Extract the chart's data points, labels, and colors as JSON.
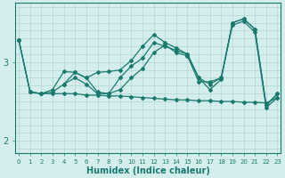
{
  "xlabel": "Humidex (Indice chaleur)",
  "bg_color": "#d4eeee",
  "grid_color": "#b8d8d8",
  "line_color": "#1a7a6e",
  "x_ticks": [
    0,
    1,
    2,
    3,
    4,
    5,
    6,
    7,
    8,
    9,
    10,
    11,
    12,
    13,
    14,
    15,
    16,
    17,
    18,
    19,
    20,
    21,
    22,
    23
  ],
  "y_ticks": [
    2,
    3
  ],
  "ylim": [
    1.85,
    3.75
  ],
  "xlim": [
    -0.3,
    23.3
  ],
  "series": [
    {
      "x": [
        0,
        1,
        2,
        3,
        4,
        5,
        6,
        7,
        8,
        9,
        10,
        11,
        12,
        13,
        14,
        15,
        16,
        17,
        18,
        19,
        20,
        21,
        22,
        23
      ],
      "y": [
        3.28,
        2.62,
        2.6,
        2.62,
        2.72,
        2.8,
        2.72,
        2.6,
        2.6,
        2.8,
        2.95,
        3.05,
        3.25,
        3.2,
        3.15,
        3.1,
        2.8,
        2.72,
        2.8,
        3.5,
        3.55,
        3.42,
        2.45,
        2.6
      ]
    },
    {
      "x": [
        0,
        1,
        2,
        3,
        4,
        5,
        6,
        7,
        8,
        9,
        10,
        11,
        12,
        13,
        14,
        15,
        16,
        17,
        18,
        19,
        20,
        21,
        22,
        23
      ],
      "y": [
        3.28,
        2.62,
        2.6,
        2.65,
        2.88,
        2.87,
        2.8,
        2.87,
        2.88,
        2.9,
        3.02,
        3.2,
        3.35,
        3.25,
        3.18,
        3.1,
        2.8,
        2.65,
        2.78,
        3.5,
        3.55,
        3.42,
        2.45,
        2.6
      ]
    },
    {
      "x": [
        4,
        5,
        6,
        7,
        8,
        9,
        10,
        11,
        12,
        13,
        14,
        15,
        16,
        17,
        18,
        19,
        20,
        21,
        22,
        23
      ],
      "y": [
        2.72,
        2.87,
        2.8,
        2.62,
        2.6,
        2.65,
        2.8,
        2.92,
        3.12,
        3.22,
        3.12,
        3.08,
        2.75,
        2.75,
        2.8,
        3.47,
        3.52,
        3.38,
        2.42,
        2.55
      ]
    },
    {
      "x": [
        0,
        1,
        2,
        3,
        4,
        5,
        6,
        7,
        8,
        9,
        10,
        11,
        12,
        13,
        14,
        15,
        16,
        17,
        18,
        19,
        20,
        21,
        22,
        23
      ],
      "y": [
        3.28,
        2.62,
        2.6,
        2.6,
        2.6,
        2.6,
        2.58,
        2.58,
        2.57,
        2.57,
        2.56,
        2.55,
        2.54,
        2.53,
        2.52,
        2.52,
        2.51,
        2.51,
        2.5,
        2.5,
        2.49,
        2.49,
        2.48,
        2.55
      ]
    }
  ]
}
